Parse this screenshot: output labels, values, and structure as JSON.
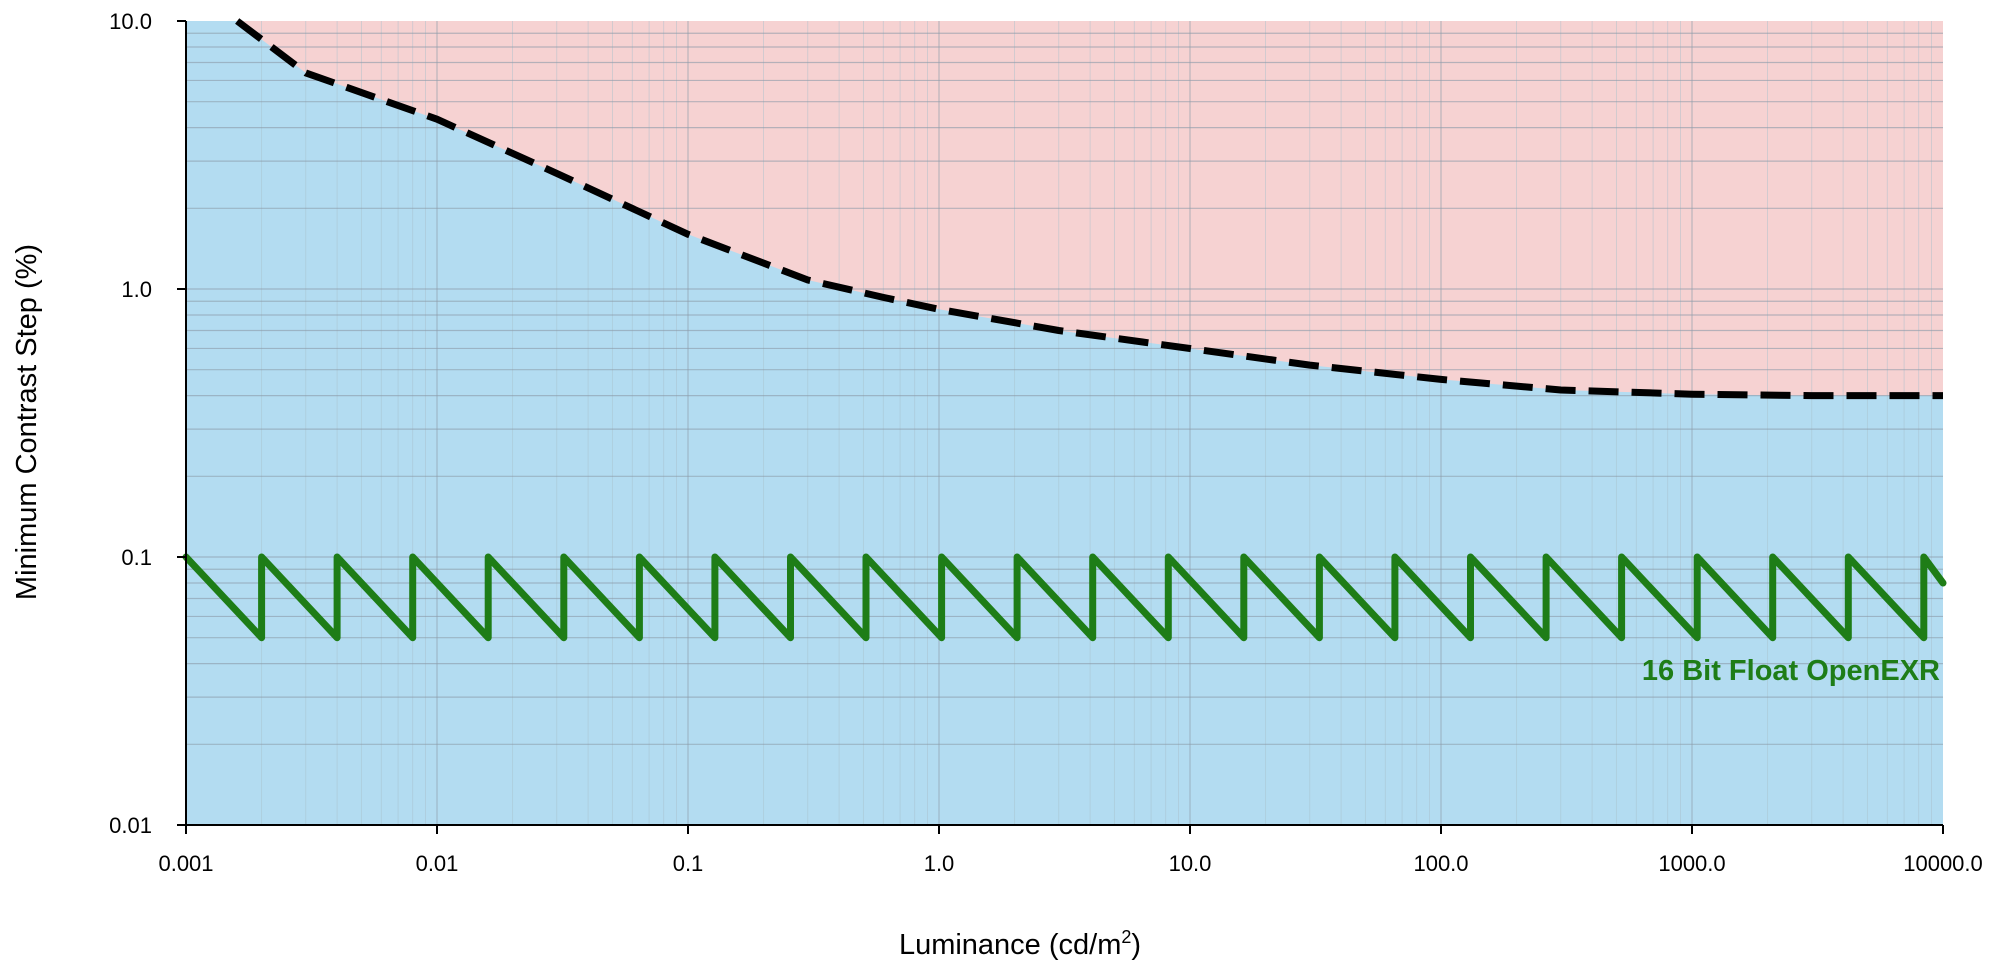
{
  "chart_data": {
    "type": "line",
    "x_scale": "log",
    "y_scale": "log",
    "xlim": [
      0.001,
      10000
    ],
    "ylim": [
      0.01,
      10
    ],
    "x_tick_labels": [
      "0.001",
      "0.01",
      "0.1",
      "1.0",
      "10.0",
      "100.0",
      "1000.0",
      "10000.0"
    ],
    "x_tick_values": [
      0.001,
      0.01,
      0.1,
      1,
      10,
      100,
      1000,
      10000
    ],
    "y_tick_labels": [
      "0.01",
      "0.1",
      "1.0",
      "10.0"
    ],
    "y_tick_values": [
      0.01,
      0.1,
      1,
      10
    ],
    "xlabel": "Luminance (cd/m",
    "xlabel_superscript": "2",
    "xlabel_suffix": ")",
    "ylabel": "Minimum Contrast Step (%)",
    "grid": true,
    "colors": {
      "above_region": "#f6d2d2",
      "below_region": "#b3dcf1",
      "threshold_curve": "#000000",
      "series": "#1e7d17",
      "grid_major": "#8a9aa8",
      "grid_minor": "#a7bfcc"
    },
    "threshold_curve": {
      "style": "dashed",
      "x": [
        0.0016,
        0.003,
        0.01,
        0.03,
        0.1,
        0.3,
        0.6,
        1,
        3,
        10,
        30,
        100,
        300,
        1000,
        3000,
        10000
      ],
      "y": [
        10,
        6.4,
        4.3,
        2.7,
        1.6,
        1.08,
        0.93,
        0.84,
        0.7,
        0.6,
        0.52,
        0.46,
        0.42,
        0.405,
        0.4,
        0.4
      ]
    },
    "series": [
      {
        "name": "16 Bit Float OpenEXR",
        "pattern": "sawtooth",
        "x_start": 0.001,
        "x_end": 10000,
        "first_reset": 0.002,
        "reset_ratio": 2,
        "y_high": 0.1,
        "y_low": 0.05,
        "y_end": 0.08
      }
    ]
  }
}
